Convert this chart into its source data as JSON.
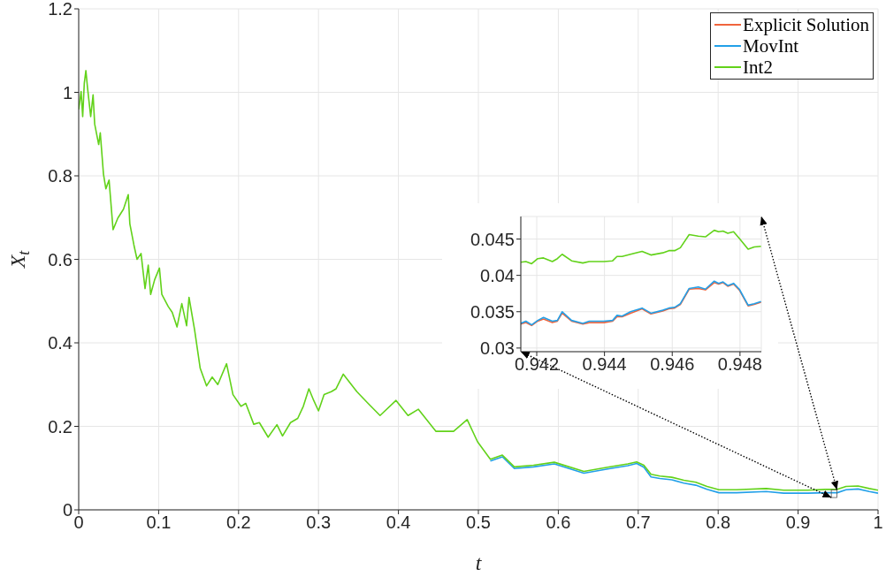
{
  "chart_data": [
    {
      "type": "line",
      "xlabel": "t",
      "ylabel": "X$_{t}$",
      "xlim": [
        0,
        1
      ],
      "ylim": [
        0,
        1.2
      ],
      "xticks": [
        0,
        0.1,
        0.2,
        0.3,
        0.4,
        0.5,
        0.6,
        0.7,
        0.8,
        0.9,
        1
      ],
      "yticks": [
        0,
        0.2,
        0.4,
        0.6,
        0.8,
        1,
        1.2
      ],
      "grid": true,
      "legend": "top right",
      "x": [
        0,
        0.003,
        0.005,
        0.007,
        0.009,
        0.011,
        0.015,
        0.018,
        0.02,
        0.025,
        0.027,
        0.031,
        0.034,
        0.038,
        0.043,
        0.049,
        0.056,
        0.062,
        0.064,
        0.069,
        0.073,
        0.078,
        0.083,
        0.087,
        0.09,
        0.095,
        0.101,
        0.104,
        0.112,
        0.117,
        0.123,
        0.129,
        0.135,
        0.138,
        0.145,
        0.152,
        0.16,
        0.167,
        0.174,
        0.185,
        0.193,
        0.203,
        0.209,
        0.219,
        0.226,
        0.237,
        0.248,
        0.255,
        0.265,
        0.274,
        0.281,
        0.288,
        0.294,
        0.3,
        0.307,
        0.316,
        0.322,
        0.331,
        0.348,
        0.362,
        0.377,
        0.397,
        0.412,
        0.425,
        0.447,
        0.469,
        0.486,
        0.499,
        0.515,
        0.53,
        0.545,
        0.569,
        0.595,
        0.632,
        0.665,
        0.687,
        0.698,
        0.707,
        0.716,
        0.727,
        0.742,
        0.757,
        0.772,
        0.786,
        0.801,
        0.823,
        0.86,
        0.882,
        0.912,
        0.934,
        0.949,
        0.96,
        0.975,
        0.989,
        1
      ],
      "series": [
        {
          "name": "Explicit Solution",
          "color": "#f0643c",
          "values": [
            null,
            null,
            null,
            null,
            null,
            null,
            null,
            null,
            null,
            null,
            null,
            null,
            null,
            null,
            null,
            null,
            null,
            null,
            null,
            null,
            null,
            null,
            null,
            null,
            null,
            null,
            null,
            null,
            null,
            null,
            null,
            null,
            null,
            null,
            null,
            null,
            null,
            null,
            null,
            null,
            null,
            null,
            null,
            null,
            null,
            null,
            null,
            null,
            null,
            null,
            null,
            null,
            null,
            null,
            null,
            null,
            null,
            null,
            null,
            null,
            null,
            null,
            null,
            null,
            null,
            null,
            null,
            null,
            null,
            null,
            null,
            null,
            null,
            null,
            null,
            null,
            null,
            null,
            null,
            null,
            null,
            null,
            null,
            null,
            null,
            null,
            null,
            null,
            null,
            null,
            null,
            null,
            null,
            null,
            null
          ]
        },
        {
          "name": "MovInt",
          "color": "#22a0e8",
          "values": [
            null,
            null,
            null,
            null,
            null,
            null,
            null,
            null,
            null,
            null,
            null,
            null,
            null,
            null,
            null,
            null,
            null,
            null,
            null,
            null,
            null,
            null,
            null,
            null,
            null,
            null,
            null,
            null,
            null,
            null,
            null,
            null,
            null,
            null,
            null,
            null,
            null,
            null,
            null,
            null,
            null,
            null,
            null,
            null,
            null,
            null,
            null,
            null,
            null,
            null,
            null,
            null,
            null,
            null,
            null,
            null,
            null,
            null,
            null,
            null,
            null,
            null,
            null,
            null,
            null,
            null,
            null,
            null,
            0.117,
            0.127,
            0.099,
            0.103,
            0.11,
            0.088,
            0.099,
            0.106,
            0.111,
            0.102,
            0.079,
            0.075,
            0.072,
            0.064,
            0.059,
            0.049,
            0.041,
            0.041,
            0.044,
            0.04,
            0.04,
            0.041,
            0.041,
            0.048,
            0.05,
            0.044,
            0.04
          ]
        },
        {
          "name": "Int2",
          "color": "#62d21a",
          "values": [
            0.959,
            1.002,
            0.942,
            1.022,
            1.052,
            1.012,
            0.942,
            0.994,
            0.924,
            0.875,
            0.903,
            0.804,
            0.769,
            0.79,
            0.671,
            0.699,
            0.72,
            0.755,
            0.685,
            0.635,
            0.6,
            0.614,
            0.53,
            0.586,
            0.516,
            0.551,
            0.579,
            0.516,
            0.487,
            0.473,
            0.438,
            0.494,
            0.441,
            0.509,
            0.431,
            0.339,
            0.297,
            0.318,
            0.3,
            0.35,
            0.276,
            0.248,
            0.255,
            0.205,
            0.209,
            0.174,
            0.204,
            0.177,
            0.209,
            0.219,
            0.248,
            0.29,
            0.262,
            0.237,
            0.276,
            0.283,
            0.29,
            0.325,
            0.283,
            0.255,
            0.226,
            0.262,
            0.226,
            0.241,
            0.188,
            0.188,
            0.216,
            0.163,
            0.121,
            0.131,
            0.103,
            0.107,
            0.114,
            0.092,
            0.103,
            0.11,
            0.115,
            0.107,
            0.085,
            0.081,
            0.078,
            0.071,
            0.066,
            0.056,
            0.048,
            0.048,
            0.051,
            0.047,
            0.047,
            0.049,
            0.049,
            0.056,
            0.057,
            0.051,
            0.047
          ]
        }
      ]
    },
    {
      "type": "line",
      "xlim": [
        0.94153,
        0.94863
      ],
      "ylim": [
        0.0295,
        0.0481
      ],
      "xticks": [
        0.942,
        0.944,
        0.946,
        0.948
      ],
      "yticks": [
        0.03,
        0.035,
        0.04,
        0.045
      ],
      "grid": true,
      "x": [
        0.94153,
        0.94168,
        0.94185,
        0.94203,
        0.9422,
        0.94246,
        0.94261,
        0.94275,
        0.94303,
        0.94336,
        0.94355,
        0.94398,
        0.94424,
        0.94437,
        0.94452,
        0.94477,
        0.94511,
        0.94537,
        0.94572,
        0.9459,
        0.94607,
        0.94624,
        0.9465,
        0.94677,
        0.94698,
        0.94724,
        0.94737,
        0.9475,
        0.94764,
        0.94781,
        0.94798,
        0.94824,
        0.94842,
        0.94862
      ],
      "series": [
        {
          "color": "#f0643c",
          "values": [
            0.0333,
            0.0335,
            0.0331,
            0.0337,
            0.034,
            0.0335,
            0.0337,
            0.0348,
            0.0337,
            0.0333,
            0.0335,
            0.0335,
            0.0337,
            0.0343,
            0.0343,
            0.0348,
            0.0354,
            0.0347,
            0.0351,
            0.0354,
            0.0355,
            0.036,
            0.0381,
            0.0382,
            0.038,
            0.039,
            0.0388,
            0.039,
            0.0385,
            0.0388,
            0.038,
            0.0358,
            0.036,
            0.0363
          ]
        },
        {
          "color": "#22a0e8",
          "values": [
            0.0334,
            0.0337,
            0.0332,
            0.0338,
            0.0342,
            0.0337,
            0.0338,
            0.035,
            0.0338,
            0.0334,
            0.0337,
            0.0337,
            0.0338,
            0.0345,
            0.0344,
            0.035,
            0.0355,
            0.0348,
            0.0352,
            0.0355,
            0.0356,
            0.0361,
            0.0382,
            0.0384,
            0.0381,
            0.0392,
            0.0389,
            0.0391,
            0.0386,
            0.0389,
            0.0381,
            0.0359,
            0.0361,
            0.0364
          ]
        },
        {
          "color": "#62d21a",
          "values": [
            0.0418,
            0.0419,
            0.0416,
            0.0423,
            0.0424,
            0.0419,
            0.0423,
            0.0429,
            0.042,
            0.0417,
            0.0419,
            0.0419,
            0.042,
            0.0426,
            0.0426,
            0.0429,
            0.0433,
            0.0428,
            0.0431,
            0.0434,
            0.0434,
            0.0438,
            0.0456,
            0.0454,
            0.0453,
            0.0462,
            0.046,
            0.0461,
            0.0458,
            0.046,
            0.0451,
            0.0436,
            0.0439,
            0.044
          ]
        }
      ]
    }
  ]
}
